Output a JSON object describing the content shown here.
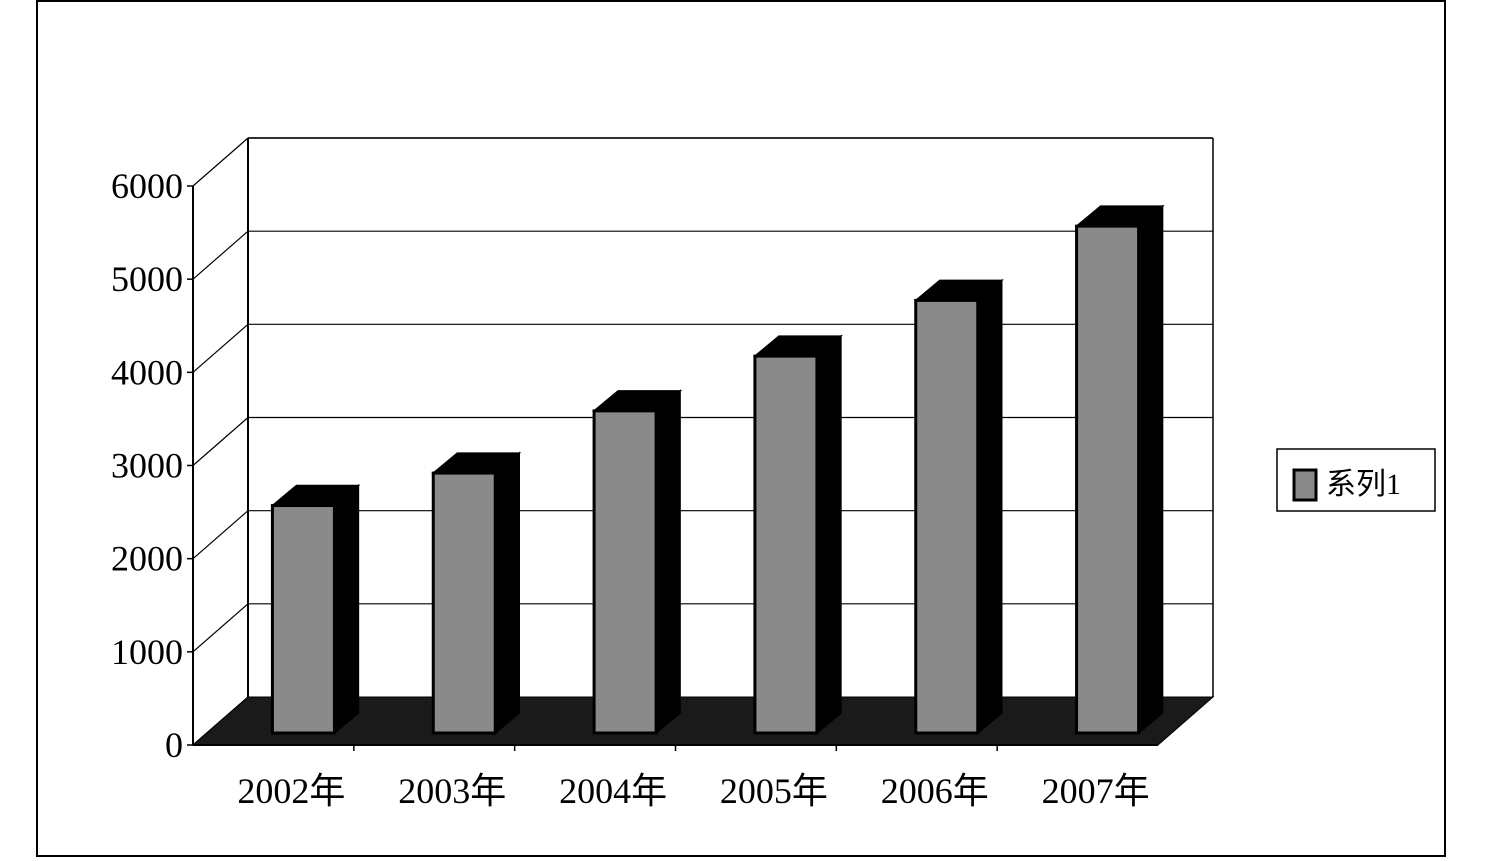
{
  "chart_data": {
    "type": "bar",
    "categories": [
      "2002年",
      "2003年",
      "2004年",
      "2005年",
      "2006年",
      "2007年"
    ],
    "series": [
      {
        "name": "系列1",
        "values": [
          2450,
          2800,
          3470,
          4060,
          4660,
          5460
        ]
      }
    ],
    "ylim": [
      0,
      6000
    ],
    "y_ticks": [
      "0",
      "1000",
      "2000",
      "3000",
      "4000",
      "5000",
      "6000"
    ],
    "grid": true,
    "legend": "right",
    "style": "3d-bar",
    "colors": {
      "bar_front": "#8a8a8a",
      "bar_side": "#000000",
      "floor": "#1a1a1a"
    }
  }
}
